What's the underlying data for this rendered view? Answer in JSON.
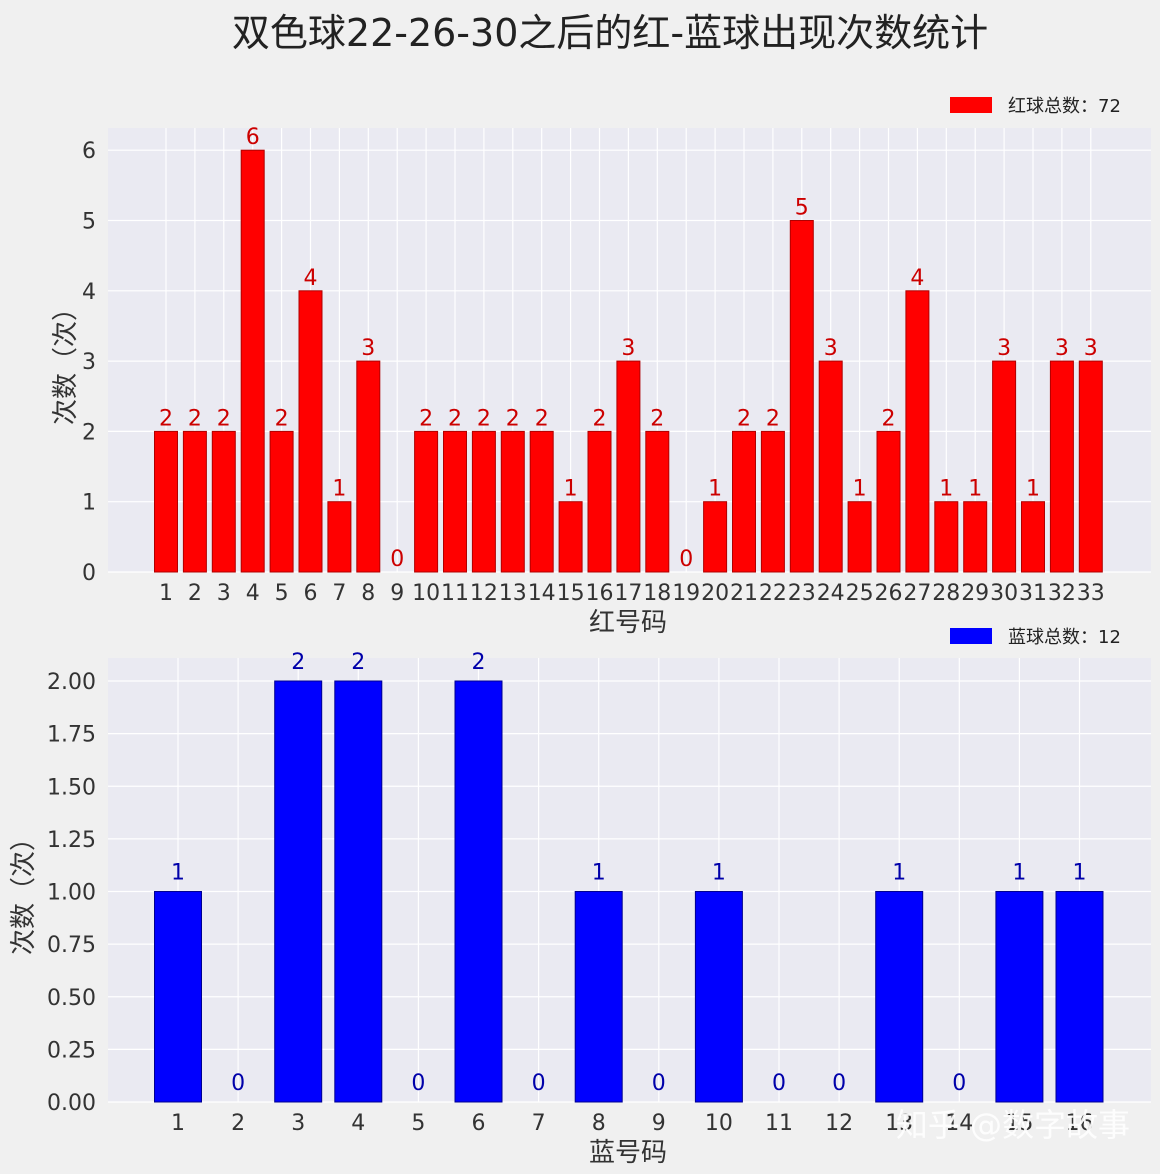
{
  "title": "双色球22-26-30之后的红-蓝球出现次数统计",
  "watermark": "知乎 @数字故事",
  "colors": {
    "red": "#ff0000",
    "blue": "#0000ff",
    "red_label": "#cc0000",
    "blue_label": "#0000aa",
    "plot_bg": "#eaeaf2",
    "grid": "#ffffff"
  },
  "chart_data": [
    {
      "type": "bar",
      "xlabel": "红号码",
      "ylabel": "次数（次）",
      "legend": "红球总数：72",
      "legend_position": "top-right",
      "grid": true,
      "ylim": [
        0,
        6.3
      ],
      "yticks": [
        "0",
        "1",
        "2",
        "3",
        "4",
        "5",
        "6"
      ],
      "categories": [
        "1",
        "2",
        "3",
        "4",
        "5",
        "6",
        "7",
        "8",
        "9",
        "10",
        "11",
        "12",
        "13",
        "14",
        "15",
        "16",
        "17",
        "18",
        "19",
        "20",
        "21",
        "22",
        "23",
        "24",
        "25",
        "26",
        "27",
        "28",
        "29",
        "30",
        "31",
        "32",
        "33"
      ],
      "values": [
        2,
        2,
        2,
        6,
        2,
        4,
        1,
        3,
        0,
        2,
        2,
        2,
        2,
        2,
        1,
        2,
        3,
        2,
        0,
        1,
        2,
        2,
        5,
        3,
        1,
        2,
        4,
        1,
        1,
        3,
        1,
        3,
        3
      ]
    },
    {
      "type": "bar",
      "xlabel": "蓝号码",
      "ylabel": "次数（次）",
      "legend": "蓝球总数：12",
      "legend_position": "top-right",
      "grid": true,
      "ylim": [
        0,
        2.1
      ],
      "yticks": [
        "0.00",
        "0.25",
        "0.50",
        "0.75",
        "1.00",
        "1.25",
        "1.50",
        "1.75",
        "2.00"
      ],
      "categories": [
        "1",
        "2",
        "3",
        "4",
        "5",
        "6",
        "7",
        "8",
        "9",
        "10",
        "11",
        "12",
        "13",
        "14",
        "15",
        "16"
      ],
      "values": [
        1,
        0,
        2,
        2,
        0,
        2,
        0,
        1,
        0,
        1,
        0,
        0,
        1,
        0,
        1,
        1
      ]
    }
  ]
}
